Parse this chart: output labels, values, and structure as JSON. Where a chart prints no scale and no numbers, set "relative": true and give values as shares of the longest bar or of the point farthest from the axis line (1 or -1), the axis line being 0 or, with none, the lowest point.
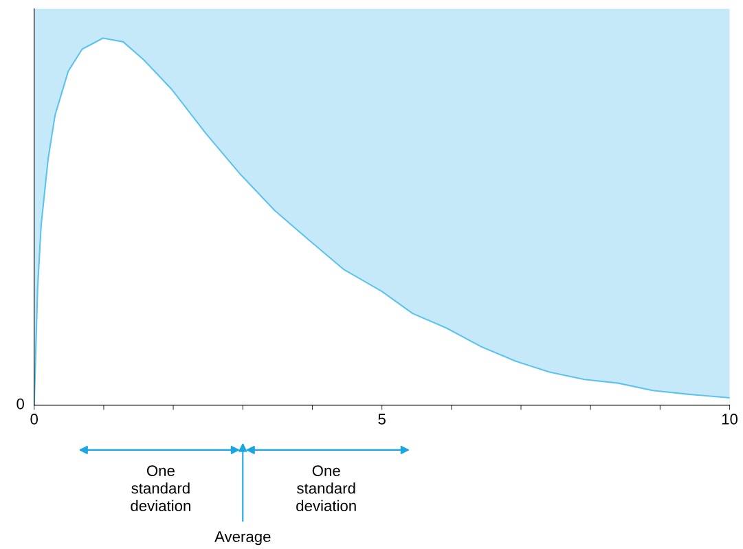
{
  "chart_data": {
    "type": "area",
    "relative": true,
    "x": [
      0,
      0.02,
      0.05,
      0.1,
      0.2,
      0.3,
      0.49,
      0.69,
      0.99,
      1.28,
      1.58,
      1.98,
      2.47,
      2.96,
      3.46,
      3.95,
      4.45,
      5.0,
      5.44,
      5.93,
      6.42,
      6.92,
      7.41,
      7.91,
      8.4,
      8.89,
      9.39,
      10
    ],
    "series": [
      {
        "color": "#5bc3ec",
        "values": [
          0,
          0.13,
          0.32,
          0.49,
          0.67,
          0.79,
          0.91,
          0.97,
          1.0,
          0.99,
          0.94,
          0.86,
          0.74,
          0.63,
          0.53,
          0.45,
          0.37,
          0.31,
          0.25,
          0.21,
          0.16,
          0.12,
          0.09,
          0.07,
          0.06,
          0.04,
          0.03,
          0.02
        ]
      }
    ],
    "xlim": [
      0,
      10
    ],
    "xticks": [
      0,
      {
        "value": 1,
        "label": null
      },
      {
        "value": 2,
        "label": null
      },
      {
        "value": 3,
        "label": null
      },
      {
        "value": 4,
        "label": null
      },
      5,
      {
        "value": 6,
        "label": null
      },
      {
        "value": 7,
        "label": null
      },
      {
        "value": 8,
        "label": null
      },
      {
        "value": 9,
        "label": null
      },
      10
    ],
    "annotations": [
      "0",
      "One\nstandard\ndeviation",
      "One\nstandard\ndeviation",
      "Average"
    ]
  }
}
